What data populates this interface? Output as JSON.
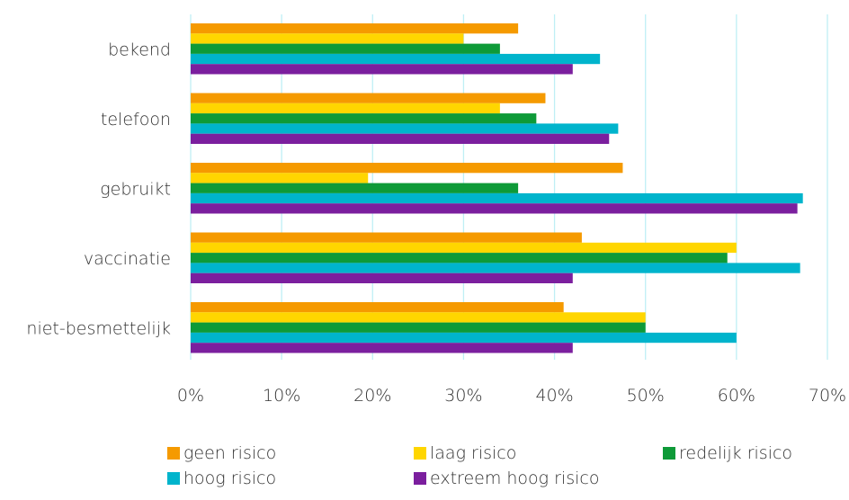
{
  "chart_data": {
    "type": "bar",
    "orientation": "horizontal",
    "categories": [
      "bekend",
      "telefoon",
      "gebruikt",
      "vaccinatie",
      "niet-besmettelijk"
    ],
    "series": [
      {
        "name": "geen risico",
        "color": "#F59A00",
        "values": [
          36,
          39,
          47.5,
          43,
          41
        ]
      },
      {
        "name": "laag risico",
        "color": "#FFD600",
        "values": [
          30,
          34,
          19.5,
          60,
          50
        ]
      },
      {
        "name": "redelijk risico",
        "color": "#0E9A38",
        "values": [
          34,
          38,
          36,
          59,
          50
        ]
      },
      {
        "name": "hoog risico",
        "color": "#00B4CC",
        "values": [
          45,
          47,
          67.3,
          67,
          60
        ]
      },
      {
        "name": "extreem hoog risico",
        "color": "#7B1F9E",
        "values": [
          42,
          46,
          66.7,
          42,
          42
        ]
      }
    ],
    "xlim": [
      0,
      70
    ],
    "x_ticks": [
      "0%",
      "10%",
      "20%",
      "30%",
      "40%",
      "50%",
      "60%",
      "70%"
    ],
    "grid": "vertical",
    "grid_color": "#BFEFF5",
    "legend_position": "bottom"
  }
}
